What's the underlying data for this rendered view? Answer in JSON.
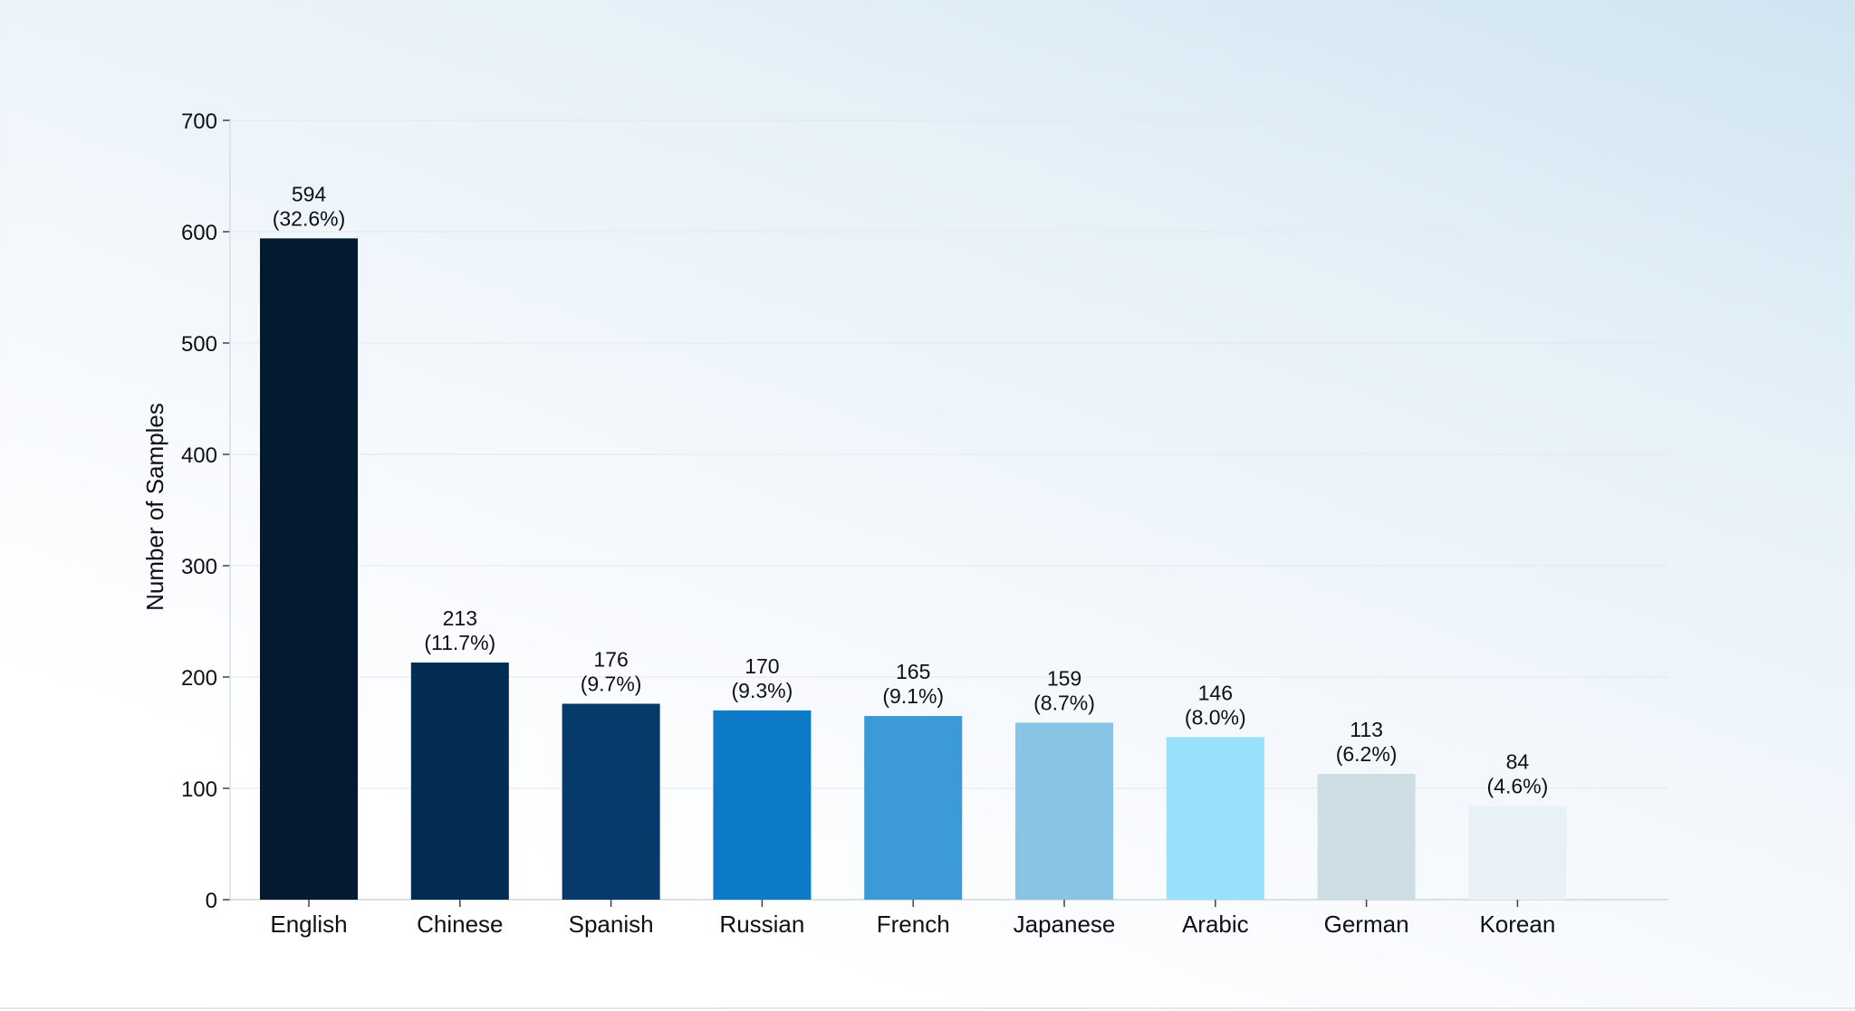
{
  "chart_data": {
    "type": "bar",
    "title": "",
    "xlabel": "",
    "ylabel": "Number of Samples",
    "ylim": [
      0,
      700
    ],
    "yticks": [
      0,
      100,
      200,
      300,
      400,
      500,
      600,
      700
    ],
    "grid": true,
    "categories": [
      "English",
      "Chinese",
      "Spanish",
      "Russian",
      "French",
      "Japanese",
      "Arabic",
      "German",
      "Korean"
    ],
    "values": [
      594,
      213,
      176,
      170,
      165,
      159,
      146,
      113,
      84
    ],
    "percent_labels": [
      "(32.6%)",
      "(11.7%)",
      "(9.7%)",
      "(9.3%)",
      "(9.1%)",
      "(8.7%)",
      "(8.0%)",
      "(6.2%)",
      "(4.6%)"
    ],
    "colors": [
      "#031a30",
      "#032c52",
      "#08396b",
      "#0d7ac8",
      "#3b9ad7",
      "#89c4e5",
      "#99e0fb",
      "#ccdee4",
      "#e8f0f8"
    ]
  }
}
